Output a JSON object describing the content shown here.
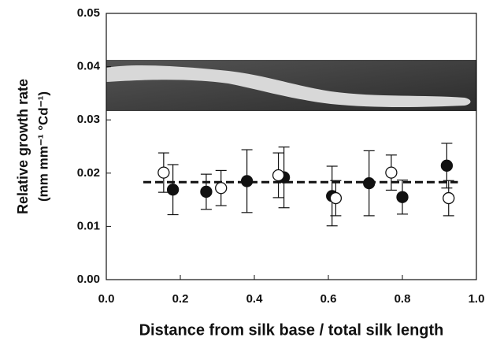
{
  "chart_data": {
    "type": "scatter",
    "x_label": "Distance from silk base / total silk length",
    "y_label": [
      "Relative growth rate",
      "(mm mm⁻¹ °Cd⁻¹)"
    ],
    "xlim": [
      0,
      1
    ],
    "ylim": [
      0,
      0.05
    ],
    "xticks": [
      {
        "value": 0,
        "label": "0.0"
      },
      0.2,
      0.4,
      0.6,
      0.8,
      {
        "value": 1,
        "label": "1.0"
      }
    ],
    "yticks": [
      {
        "value": 0,
        "label": "0.00"
      },
      0.01,
      0.02,
      0.03,
      0.04,
      0.05
    ],
    "series": [
      {
        "color": "#111111",
        "x": [
          0.18,
          0.27,
          0.38,
          0.48,
          0.61,
          0.71,
          0.8,
          0.92
        ],
        "values": [
          0.0169,
          0.0165,
          0.0185,
          0.0192,
          0.0157,
          0.0181,
          0.0155,
          0.0214
        ],
        "errors": [
          0.0047,
          0.0033,
          0.0059,
          0.0057,
          0.0056,
          0.0061,
          0.0032,
          0.0042
        ]
      },
      {
        "color": "#ffffff",
        "x": [
          0.155,
          0.31,
          0.465,
          0.62,
          0.77,
          0.925
        ],
        "values": [
          0.0201,
          0.0172,
          0.0196,
          0.0153,
          0.0201,
          0.0153
        ],
        "errors": [
          0.0037,
          0.0033,
          0.0042,
          0.0033,
          0.0033,
          0.0033
        ]
      }
    ],
    "reference_line": {
      "x": [
        0.1,
        0.95
      ],
      "values": [
        0.0183,
        0.0183
      ]
    }
  }
}
